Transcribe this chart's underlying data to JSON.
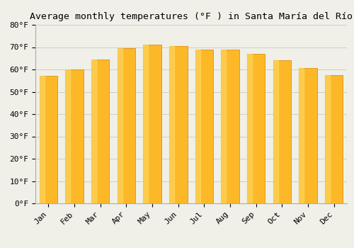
{
  "title": "Average monthly temperatures (°F ) in Santa María del Río",
  "months": [
    "Jan",
    "Feb",
    "Mar",
    "Apr",
    "May",
    "Jun",
    "Jul",
    "Aug",
    "Sep",
    "Oct",
    "Nov",
    "Dec"
  ],
  "values": [
    57,
    60,
    64.5,
    69.5,
    71,
    70.5,
    69,
    69,
    67,
    64,
    60.5,
    57.5
  ],
  "bar_color_main": "#FDB827",
  "bar_color_edge": "#E09010",
  "bar_color_light": "#FEDC6A",
  "ylim": [
    0,
    80
  ],
  "yticks": [
    0,
    10,
    20,
    30,
    40,
    50,
    60,
    70,
    80
  ],
  "ytick_labels": [
    "0°F",
    "10°F",
    "20°F",
    "30°F",
    "40°F",
    "50°F",
    "60°F",
    "70°F",
    "80°F"
  ],
  "background_color": "#f0f0e8",
  "grid_color": "#cccccc",
  "title_fontsize": 9.5,
  "tick_fontsize": 8,
  "bar_width": 0.7
}
